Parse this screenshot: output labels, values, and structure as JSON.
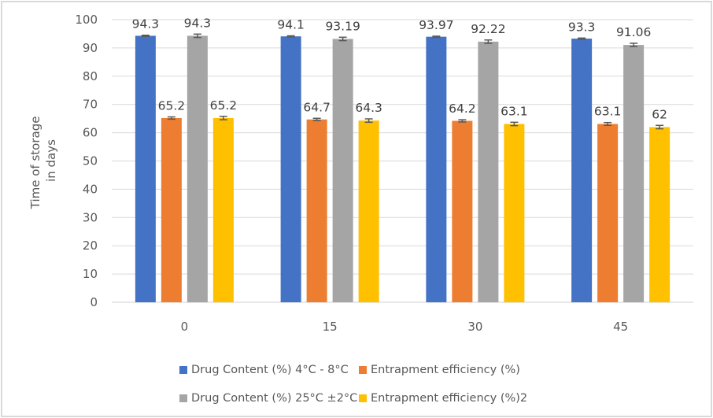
{
  "chart_data": {
    "type": "bar",
    "title": "",
    "xlabel": "",
    "ylabel": "Time of storage in days",
    "ylabel_lines": [
      "Time of storage",
      "in days"
    ],
    "categories": [
      "0",
      "15",
      "30",
      "45"
    ],
    "ylim": [
      0,
      100
    ],
    "yticks": [
      0,
      10,
      20,
      30,
      40,
      50,
      60,
      70,
      80,
      90,
      100
    ],
    "grid": true,
    "legend_position": "bottom",
    "series": [
      {
        "name": "Drug Content (%) 4°C - 8°C",
        "color": "#4472c4",
        "values": [
          94.3,
          94.1,
          93.97,
          93.3
        ],
        "labels": [
          "94.3",
          "94.1",
          "93.97",
          "93.3"
        ],
        "error": [
          0.2,
          0.2,
          0.2,
          0.2
        ]
      },
      {
        "name": "Entrapment efficiency (%)",
        "color": "#ed7d31",
        "values": [
          65.2,
          64.7,
          64.2,
          63.1
        ],
        "labels": [
          "65.2",
          "64.7",
          "64.2",
          "63.1"
        ],
        "error": [
          0.4,
          0.4,
          0.4,
          0.5
        ]
      },
      {
        "name": "Drug Content (%) 25°C ±2°C",
        "color": "#a5a5a5",
        "values": [
          94.3,
          93.19,
          92.22,
          91.06
        ],
        "labels": [
          "94.3",
          "93.19",
          "92.22",
          "91.06"
        ],
        "error": [
          0.6,
          0.6,
          0.6,
          0.6
        ]
      },
      {
        "name": "Entrapment efficiency (%)2",
        "color": "#ffc000",
        "values": [
          65.2,
          64.3,
          63.1,
          62
        ],
        "labels": [
          "65.2",
          "64.3",
          "63.1",
          "62"
        ],
        "error": [
          0.6,
          0.6,
          0.6,
          0.6
        ]
      }
    ],
    "colors": {
      "grid": "#d9d9d9",
      "error_bar": "#595959",
      "text": "#595959"
    }
  },
  "legend": {
    "rows": [
      [
        {
          "label": "Drug Content (%) 4°C - 8°C",
          "color": "#4472c4"
        },
        {
          "label": "Entrapment efficiency (%)",
          "color": "#ed7d31"
        }
      ],
      [
        {
          "label": "Drug Content (%) 25°C ±2°C",
          "color": "#a5a5a5"
        },
        {
          "label": "Entrapment efficiency (%)2",
          "color": "#ffc000"
        }
      ]
    ]
  }
}
